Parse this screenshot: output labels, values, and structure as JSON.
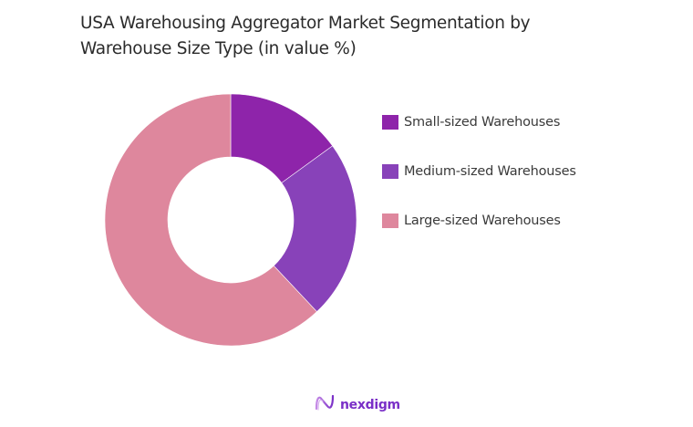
{
  "header": {
    "title_line1": "USA Warehousing Aggregator Market Segmentation by",
    "title_line2": "Warehouse Size Type (in value %)"
  },
  "legend": {
    "items": [
      {
        "label": "Small-sized Warehouses",
        "color": "#8e24aa"
      },
      {
        "label": "Medium-sized Warehouses",
        "color": "#8842b9"
      },
      {
        "label": "Large-sized Warehouses",
        "color": "#de879d"
      }
    ]
  },
  "brand": {
    "name": "nexdigm",
    "icon": "nexdigm-logo-icon",
    "color": "#7a2fc7"
  },
  "chart_data": {
    "type": "pie",
    "variant": "donut",
    "title": "USA Warehousing Aggregator Market Segmentation by Warehouse Size Type (in value %)",
    "categories": [
      "Small-sized Warehouses",
      "Medium-sized Warehouses",
      "Large-sized Warehouses"
    ],
    "values": [
      15,
      23,
      62
    ],
    "colors": [
      "#8e24aa",
      "#8842b9",
      "#de879d"
    ],
    "start_angle": "top, clockwise",
    "legend_position": "right",
    "data_labels": false
  }
}
